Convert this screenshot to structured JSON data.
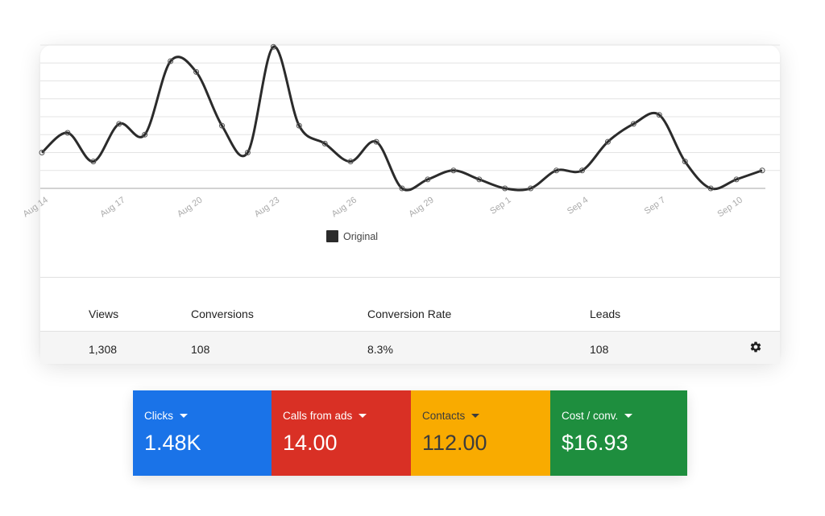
{
  "chart_data": {
    "type": "line",
    "series": [
      {
        "name": "Original",
        "values": [
          {
            "date": "Aug 14",
            "y": 2.0
          },
          {
            "date": "Aug 15",
            "y": 3.1
          },
          {
            "date": "Aug 16",
            "y": 1.5
          },
          {
            "date": "Aug 17",
            "y": 3.6
          },
          {
            "date": "Aug 18",
            "y": 3.0
          },
          {
            "date": "Aug 19",
            "y": 7.1
          },
          {
            "date": "Aug 20",
            "y": 6.5
          },
          {
            "date": "Aug 21",
            "y": 3.5
          },
          {
            "date": "Aug 22",
            "y": 2.0
          },
          {
            "date": "Aug 23",
            "y": 7.9
          },
          {
            "date": "Aug 24",
            "y": 3.5
          },
          {
            "date": "Aug 25",
            "y": 2.5
          },
          {
            "date": "Aug 26",
            "y": 1.5
          },
          {
            "date": "Aug 27",
            "y": 2.6
          },
          {
            "date": "Aug 28",
            "y": 0.0
          },
          {
            "date": "Aug 29",
            "y": 0.5
          },
          {
            "date": "Aug 30",
            "y": 1.0
          },
          {
            "date": "Aug 31",
            "y": 0.5
          },
          {
            "date": "Sep 1",
            "y": 0.0
          },
          {
            "date": "Sep 2",
            "y": 0.0
          },
          {
            "date": "Sep 3",
            "y": 1.0
          },
          {
            "date": "Sep 4",
            "y": 1.0
          },
          {
            "date": "Sep 5",
            "y": 2.6
          },
          {
            "date": "Sep 6",
            "y": 3.6
          },
          {
            "date": "Sep 7",
            "y": 4.1
          },
          {
            "date": "Sep 8",
            "y": 1.5
          },
          {
            "date": "Sep 9",
            "y": 0.0
          },
          {
            "date": "Sep 10",
            "y": 0.5
          },
          {
            "date": "Sep 11",
            "y": 1.0
          }
        ]
      }
    ],
    "x_tick_labels": [
      "Aug 14",
      "Aug 17",
      "Aug 20",
      "Aug 23",
      "Aug 26",
      "Aug 29",
      "Sep 1",
      "Sep 4",
      "Sep 7",
      "Sep 10"
    ],
    "ylim": [
      0,
      8
    ],
    "grid": true,
    "legend_position": "bottom",
    "line_color": "#2b2b2b"
  },
  "legend_label": "Original",
  "table": {
    "headers": [
      "Views",
      "Conversions",
      "Conversion Rate",
      "Leads"
    ],
    "values": [
      "1,308",
      "108",
      "8.3%",
      "108"
    ],
    "settings_icon": "gear-icon"
  },
  "metrics": [
    {
      "label": "Clicks",
      "value": "1.48K",
      "color": "#1a73e8",
      "text_color": "#ffffff"
    },
    {
      "label": "Calls from ads",
      "value": "14.00",
      "color": "#d93025",
      "text_color": "#ffffff"
    },
    {
      "label": "Contacts",
      "value": "112.00",
      "color": "#f9ab00",
      "text_color": "#3c3c3c"
    },
    {
      "label": "Cost / conv.",
      "value": "$16.93",
      "color": "#1e8e3e",
      "text_color": "#ffffff"
    }
  ]
}
